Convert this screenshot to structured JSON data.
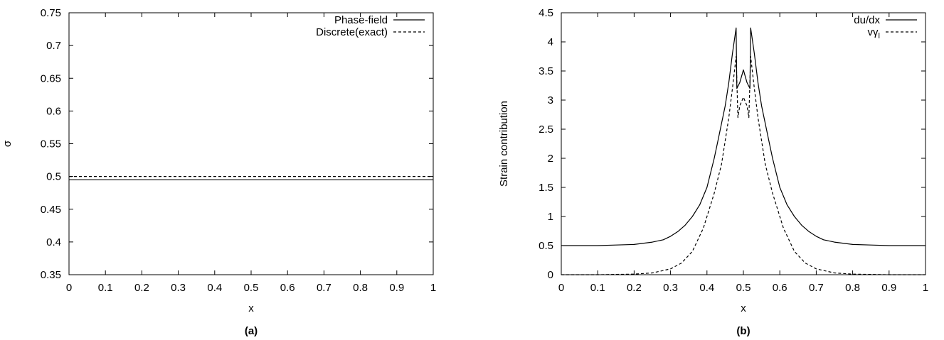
{
  "chart_data": [
    {
      "type": "line",
      "caption": "(a)",
      "xlabel": "x",
      "ylabel": "σ",
      "xlim": [
        0,
        1
      ],
      "ylim": [
        0.35,
        0.75
      ],
      "grid": false,
      "legend_position": "top-right",
      "x_ticks": [
        "0",
        "0.1",
        "0.2",
        "0.3",
        "0.4",
        "0.5",
        "0.6",
        "0.7",
        "0.8",
        "0.9",
        "1"
      ],
      "y_ticks": [
        "0.35",
        "0.4",
        "0.45",
        "0.5",
        "0.55",
        "0.6",
        "0.65",
        "0.7",
        "0.75"
      ],
      "series": [
        {
          "name": "Phase-field",
          "style": "solid",
          "x": [
            0,
            1
          ],
          "y": [
            0.495,
            0.495
          ]
        },
        {
          "name": "Discrete(exact)",
          "style": "dashed",
          "x": [
            0,
            1
          ],
          "y": [
            0.5,
            0.5
          ]
        }
      ]
    },
    {
      "type": "line",
      "caption": "(b)",
      "xlabel": "x",
      "ylabel": "Strain contribution",
      "xlim": [
        0,
        1
      ],
      "ylim": [
        0,
        4.5
      ],
      "grid": false,
      "legend_position": "top-right",
      "x_ticks": [
        "0",
        "0.1",
        "0.2",
        "0.3",
        "0.4",
        "0.5",
        "0.6",
        "0.7",
        "0.8",
        "0.9",
        "1"
      ],
      "y_ticks": [
        "0",
        "0.5",
        "1",
        "1.5",
        "2",
        "2.5",
        "3",
        "3.5",
        "4",
        "4.5"
      ],
      "series": [
        {
          "name": "du/dx",
          "style": "solid",
          "x": [
            0,
            0.05,
            0.1,
            0.15,
            0.2,
            0.25,
            0.28,
            0.3,
            0.32,
            0.34,
            0.36,
            0.38,
            0.4,
            0.41,
            0.42,
            0.43,
            0.44,
            0.45,
            0.46,
            0.47,
            0.48,
            0.482,
            0.49,
            0.5,
            0.51,
            0.518,
            0.52,
            0.53,
            0.54,
            0.55,
            0.56,
            0.57,
            0.58,
            0.59,
            0.6,
            0.62,
            0.64,
            0.66,
            0.68,
            0.7,
            0.72,
            0.75,
            0.8,
            0.85,
            0.9,
            0.95,
            1
          ],
          "y": [
            0.5,
            0.5,
            0.5,
            0.51,
            0.52,
            0.56,
            0.6,
            0.66,
            0.74,
            0.85,
            1.0,
            1.2,
            1.5,
            1.75,
            2.0,
            2.3,
            2.6,
            2.9,
            3.3,
            3.8,
            4.24,
            3.2,
            3.3,
            3.52,
            3.3,
            3.2,
            4.24,
            3.8,
            3.3,
            2.9,
            2.6,
            2.3,
            2.0,
            1.75,
            1.5,
            1.2,
            1.0,
            0.85,
            0.74,
            0.66,
            0.6,
            0.56,
            0.52,
            0.51,
            0.5,
            0.5,
            0.5
          ]
        },
        {
          "name": "vγ_l",
          "style": "dashed",
          "x": [
            0,
            0.1,
            0.2,
            0.25,
            0.3,
            0.33,
            0.36,
            0.39,
            0.42,
            0.44,
            0.45,
            0.46,
            0.47,
            0.48,
            0.485,
            0.49,
            0.5,
            0.51,
            0.515,
            0.52,
            0.53,
            0.54,
            0.55,
            0.56,
            0.58,
            0.61,
            0.64,
            0.67,
            0.7,
            0.75,
            0.8,
            0.9,
            1
          ],
          "y": [
            0,
            0,
            0.01,
            0.03,
            0.1,
            0.2,
            0.4,
            0.8,
            1.4,
            1.9,
            2.3,
            2.7,
            3.2,
            3.75,
            2.7,
            2.9,
            3.05,
            2.9,
            2.7,
            3.75,
            3.2,
            2.7,
            2.3,
            1.9,
            1.4,
            0.8,
            0.4,
            0.2,
            0.1,
            0.03,
            0.01,
            0,
            0
          ]
        }
      ]
    }
  ]
}
